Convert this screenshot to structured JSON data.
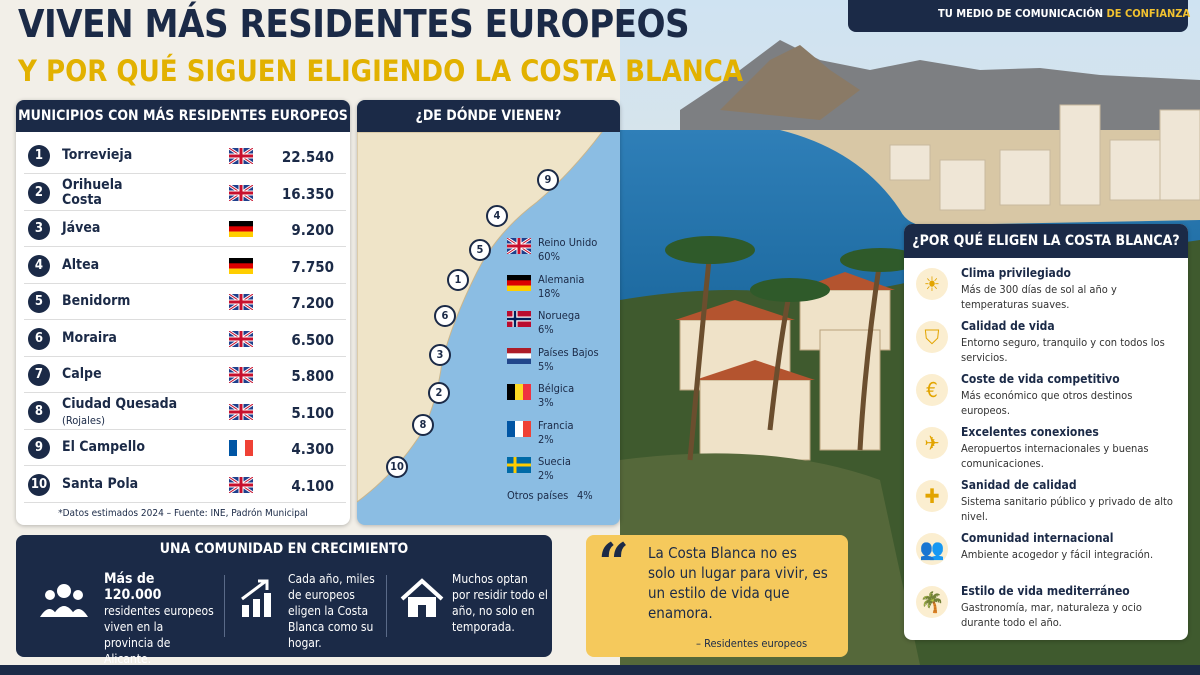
{
  "header": {
    "title": "VIVEN MÁS RESIDENTES EUROPEOS",
    "subtitle": "Y POR QUÉ SIGUEN ELIGIENDO LA COSTA BLANCA",
    "tagline": "TU MEDIO DE COMUNICACIÓN",
    "tagline_highlight": "DE CONFIANZA"
  },
  "municipios": {
    "title": "MUNICIPIOS CON MÁS RESIDENTES EUROPEOS",
    "rows": [
      {
        "rank": "1",
        "name": "Torrevieja",
        "flag": "uk",
        "residents": "22.540"
      },
      {
        "rank": "2",
        "name": "Orihuela Costa",
        "flag": "uk",
        "residents": "16.350"
      },
      {
        "rank": "3",
        "name": "Jávea",
        "flag": "de",
        "residents": "9.200"
      },
      {
        "rank": "4",
        "name": "Altea",
        "flag": "de",
        "residents": "7.750"
      },
      {
        "rank": "5",
        "name": "Benidorm",
        "flag": "uk",
        "residents": "7.200"
      },
      {
        "rank": "6",
        "name": "Moraira",
        "flag": "uk",
        "residents": "6.500"
      },
      {
        "rank": "7",
        "name": "Calpe",
        "flag": "uk",
        "residents": "5.800"
      },
      {
        "rank": "8",
        "name": "Ciudad Quesada",
        "sub": "(Rojales)",
        "flag": "uk",
        "residents": "5.100"
      },
      {
        "rank": "9",
        "name": "El Campello",
        "flag": "fr",
        "residents": "4.300"
      },
      {
        "rank": "10",
        "name": "Santa Pola",
        "flag": "uk",
        "residents": "4.100"
      }
    ],
    "note": "*Datos estimados 2024 – Fuente: INE, Padrón Municipal"
  },
  "map": {
    "title": "¿DE DÓNDE VIENEN?",
    "markers": [
      "9",
      "4",
      "5",
      "1",
      "6",
      "3",
      "2",
      "8",
      "10"
    ],
    "legend": [
      {
        "country": "Reino Unido",
        "pct": "60%",
        "flag": "uk"
      },
      {
        "country": "Alemania",
        "pct": "18%",
        "flag": "de"
      },
      {
        "country": "Noruega",
        "pct": "6%",
        "flag": "no"
      },
      {
        "country": "Países Bajos",
        "pct": "5%",
        "flag": "nl"
      },
      {
        "country": "Bélgica",
        "pct": "3%",
        "flag": "be"
      },
      {
        "country": "Francia",
        "pct": "2%",
        "flag": "fr"
      },
      {
        "country": "Suecia",
        "pct": "2%",
        "flag": "se"
      }
    ],
    "other": {
      "label": "Otros países",
      "pct": "4%"
    }
  },
  "community": {
    "title": "UNA COMUNIDAD EN CRECIMIENTO",
    "items": [
      {
        "highlight": "Más de 120.000",
        "text": "residentes europeos viven en la provincia de Alicante."
      },
      {
        "text": "Cada año, miles de europeos eligen la Costa Blanca como su hogar."
      },
      {
        "text": "Muchos optan por residir todo el año, no solo en temporada."
      }
    ]
  },
  "quote": {
    "text": "La Costa Blanca no es solo un lugar para vivir, es un estilo de vida que enamora.",
    "author": "– Residentes europeos"
  },
  "reasons": {
    "title": "¿POR QUÉ ELIGEN LA COSTA BLANCA?",
    "items": [
      {
        "title": "Clima privilegiado",
        "text": "Más de 300 días de sol al año y temperaturas suaves."
      },
      {
        "title": "Calidad de vida",
        "text": "Entorno seguro, tranquilo y con todos los servicios."
      },
      {
        "title": "Coste de vida competitivo",
        "text": "Más económico que otros destinos europeos."
      },
      {
        "title": "Excelentes conexiones",
        "text": "Aeropuertos internacionales y buenas comunicaciones."
      },
      {
        "title": "Sanidad de calidad",
        "text": "Sistema sanitario público y privado de alto nivel."
      },
      {
        "title": "Comunidad internacional",
        "text": "Ambiente acogedor y fácil integración."
      },
      {
        "title": "Estilo de vida mediterráneo",
        "text": "Gastronomía, mar, naturaleza y ocio durante todo el año."
      }
    ]
  }
}
